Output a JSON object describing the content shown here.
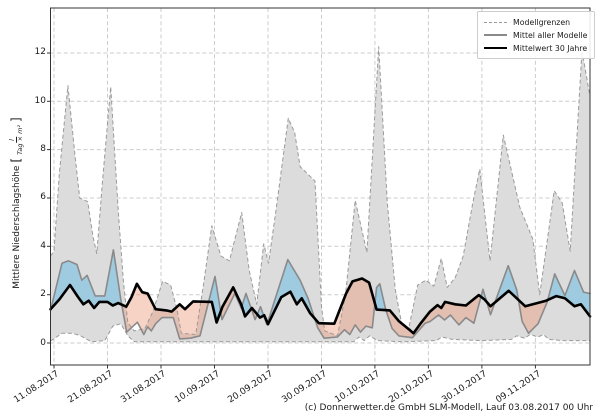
{
  "figure": {
    "caption": "(c) Donnerwetter.de GmbH SLM-Modell, Lauf 03.08.2017 00 Uhr"
  },
  "chart_data": {
    "type": "line",
    "title": "",
    "xlabel": "",
    "ylabel": "Mittlere Niederschlagshöhe [l/(Tag × m²)]",
    "ylabel_parts": {
      "text": "Mittlere Niederschlagshöhe",
      "unit_numerator": "l",
      "unit_denominator": "Tag × m²"
    },
    "x_start_date": "11.08.2017",
    "x_unit": "days since 11.08.2017",
    "x_tick_labels": [
      "11.08.2017",
      "21.08.2017",
      "31.08.2017",
      "10.09.2017",
      "20.09.2017",
      "30.09.2017",
      "10.10.2017",
      "20.10.2017",
      "30.10.2017",
      "09.11.2017"
    ],
    "x_ticks_days": [
      0,
      10,
      20,
      30,
      40,
      50,
      60,
      70,
      80,
      90
    ],
    "y_ticks": [
      0,
      2,
      4,
      6,
      8,
      10,
      12
    ],
    "xlim_days": [
      -0.65,
      100.2
    ],
    "ylim": [
      -0.91,
      13.86
    ],
    "grid": true,
    "legend": {
      "position": "top-right",
      "entries": [
        {
          "label": "Modellgrenzen",
          "style": "dashed-gray"
        },
        {
          "label": "Mittel aller Modelle",
          "style": "solid-gray"
        },
        {
          "label": "Mittelwert 30 Jahre",
          "style": "solid-black-bold"
        }
      ]
    },
    "colors": {
      "band": "#dcdcdc",
      "bound": "#9a9a9a",
      "model_mean": "#8a8a8a",
      "mean30": "#000000",
      "above_fill": "rgba(110,190,230,0.55)",
      "below_fill": "rgba(235,150,120,0.42)",
      "grid": "#cccccc",
      "spine": "#333333"
    },
    "series": [
      {
        "key": "model_max",
        "name": "Modellgrenzen (oberes Limit)",
        "style": "dashed-gray",
        "points": [
          [
            -0.65,
            3.6
          ],
          [
            0,
            3.8
          ],
          [
            1,
            7.0
          ],
          [
            2.6,
            10.65
          ],
          [
            4,
            7.6
          ],
          [
            4.8,
            6.0
          ],
          [
            6.3,
            5.85
          ],
          [
            7.3,
            4.4
          ],
          [
            8,
            3.7
          ],
          [
            9,
            6.5
          ],
          [
            10.6,
            10.6
          ],
          [
            12,
            5.5
          ],
          [
            13,
            2.5
          ],
          [
            13.8,
            0.85
          ],
          [
            15,
            0.5
          ],
          [
            17,
            0.6
          ],
          [
            18.5,
            1.3
          ],
          [
            20.3,
            2.55
          ],
          [
            21.8,
            2.4
          ],
          [
            23,
            1.4
          ],
          [
            23.8,
            0.4
          ],
          [
            26.5,
            0.35
          ],
          [
            28,
            2.5
          ],
          [
            29.5,
            4.85
          ],
          [
            31.2,
            3.6
          ],
          [
            32.8,
            3.4
          ],
          [
            35.1,
            5.4
          ],
          [
            36.5,
            3.0
          ],
          [
            37.9,
            1.6
          ],
          [
            39.2,
            4.1
          ],
          [
            40.1,
            3.3
          ],
          [
            41.5,
            5.5
          ],
          [
            43.8,
            9.3
          ],
          [
            45,
            8.7
          ],
          [
            46,
            7.3
          ],
          [
            48.8,
            6.7
          ],
          [
            50,
            1.5
          ],
          [
            50.6,
            0.5
          ],
          [
            53,
            0.3
          ],
          [
            54.5,
            2.0
          ],
          [
            56.3,
            5.9
          ],
          [
            58.5,
            3.75
          ],
          [
            60.7,
            12.26
          ],
          [
            62.3,
            5.8
          ],
          [
            63.8,
            2.2
          ],
          [
            65,
            0.8
          ],
          [
            66.3,
            0.6
          ],
          [
            68,
            2.4
          ],
          [
            69.5,
            2.6
          ],
          [
            71,
            2.35
          ],
          [
            72.4,
            3.5
          ],
          [
            73.5,
            2.3
          ],
          [
            75,
            2.7
          ],
          [
            76.5,
            3.6
          ],
          [
            78.3,
            5.8
          ],
          [
            79.6,
            7.2
          ],
          [
            81.5,
            3.4
          ],
          [
            84,
            8.6
          ],
          [
            87.1,
            5.6
          ],
          [
            89.5,
            4.3
          ],
          [
            90.8,
            2.0
          ],
          [
            93.5,
            6.3
          ],
          [
            95,
            5.8
          ],
          [
            96.5,
            3.8
          ],
          [
            98.7,
            12.1
          ],
          [
            100.2,
            10.2
          ]
        ]
      },
      {
        "key": "model_min",
        "name": "Modellgrenzen (unteres Limit)",
        "style": "dashed-gray",
        "points": [
          [
            -0.65,
            0.08
          ],
          [
            1.5,
            0.4
          ],
          [
            3.5,
            0.4
          ],
          [
            5,
            0.3
          ],
          [
            7,
            0.05
          ],
          [
            9.5,
            0.1
          ],
          [
            11,
            0.7
          ],
          [
            12.5,
            0.8
          ],
          [
            13.8,
            0.3
          ],
          [
            15,
            0.05
          ],
          [
            25,
            0.05
          ],
          [
            40,
            0.05
          ],
          [
            56,
            0.05
          ],
          [
            57,
            0.25
          ],
          [
            58,
            0.1
          ],
          [
            59,
            0.3
          ],
          [
            60.5,
            0.1
          ],
          [
            65,
            0.05
          ],
          [
            71.5,
            0.1
          ],
          [
            72.5,
            0.25
          ],
          [
            74.5,
            0.15
          ],
          [
            80,
            0.1
          ],
          [
            85.5,
            0.15
          ],
          [
            86.5,
            0.3
          ],
          [
            88,
            0.2
          ],
          [
            89,
            0.35
          ],
          [
            90.5,
            0.25
          ],
          [
            91.5,
            0.35
          ],
          [
            92.5,
            0.15
          ],
          [
            95,
            0.1
          ],
          [
            100.2,
            0.1
          ]
        ]
      },
      {
        "key": "model_mean",
        "name": "Mittel aller Modelle",
        "style": "solid-gray",
        "points": [
          [
            -0.65,
            1.35
          ],
          [
            1.5,
            3.3
          ],
          [
            2.7,
            3.4
          ],
          [
            4.3,
            3.25
          ],
          [
            5.2,
            2.6
          ],
          [
            6.2,
            2.8
          ],
          [
            7.7,
            1.95
          ],
          [
            9.5,
            1.95
          ],
          [
            11.1,
            3.85
          ],
          [
            12.5,
            1.8
          ],
          [
            13.6,
            0.45
          ],
          [
            15.6,
            0.86
          ],
          [
            16.8,
            0.35
          ],
          [
            17.5,
            0.67
          ],
          [
            18.2,
            0.5
          ],
          [
            19,
            0.8
          ],
          [
            20.2,
            1.05
          ],
          [
            22.3,
            1.05
          ],
          [
            23.5,
            0.17
          ],
          [
            25.5,
            0.2
          ],
          [
            27.3,
            0.3
          ],
          [
            30.1,
            2.75
          ],
          [
            31.4,
            0.97
          ],
          [
            33.8,
            2.05
          ],
          [
            35,
            1.45
          ],
          [
            35.9,
            2.05
          ],
          [
            37.6,
            0.97
          ],
          [
            38.6,
            1.5
          ],
          [
            39.8,
            0.76
          ],
          [
            43.7,
            3.45
          ],
          [
            46,
            2.6
          ],
          [
            47.5,
            1.84
          ],
          [
            49.3,
            0.63
          ],
          [
            50.5,
            0.2
          ],
          [
            53,
            0.25
          ],
          [
            54.3,
            0.55
          ],
          [
            55.3,
            0.35
          ],
          [
            56.3,
            0.75
          ],
          [
            57.3,
            0.45
          ],
          [
            58.3,
            0.7
          ],
          [
            59.5,
            0.63
          ],
          [
            60.3,
            2.3
          ],
          [
            60.9,
            2.45
          ],
          [
            62,
            1.4
          ],
          [
            63.2,
            0.6
          ],
          [
            64.5,
            0.29
          ],
          [
            67,
            0.22
          ],
          [
            69.4,
            0.82
          ],
          [
            70.3,
            0.89
          ],
          [
            71.9,
            1.16
          ],
          [
            73,
            0.95
          ],
          [
            74.1,
            1.16
          ],
          [
            75.7,
            0.75
          ],
          [
            77,
            1.05
          ],
          [
            78.5,
            0.82
          ],
          [
            80.2,
            2.22
          ],
          [
            81.6,
            1.17
          ],
          [
            84.9,
            3.2
          ],
          [
            86.5,
            2.2
          ],
          [
            87.5,
            0.9
          ],
          [
            88.7,
            0.4
          ],
          [
            90.5,
            0.8
          ],
          [
            92.2,
            1.7
          ],
          [
            93.6,
            2.86
          ],
          [
            95.5,
            1.96
          ],
          [
            97.3,
            3.0
          ],
          [
            99,
            2.1
          ],
          [
            100.2,
            2.05
          ]
        ]
      },
      {
        "key": "mean30",
        "name": "Mittelwert 30 Jahre",
        "style": "solid-black-bold",
        "points": [
          [
            -0.65,
            1.4
          ],
          [
            1,
            1.8
          ],
          [
            3,
            2.4
          ],
          [
            4.5,
            1.9
          ],
          [
            5.5,
            1.6
          ],
          [
            6.5,
            1.75
          ],
          [
            7.5,
            1.45
          ],
          [
            8.5,
            1.7
          ],
          [
            10,
            1.7
          ],
          [
            11,
            1.55
          ],
          [
            12,
            1.65
          ],
          [
            13.5,
            1.5
          ],
          [
            14.5,
            1.9
          ],
          [
            15.5,
            2.45
          ],
          [
            16.5,
            2.1
          ],
          [
            17.5,
            2.05
          ],
          [
            19,
            1.4
          ],
          [
            21,
            1.35
          ],
          [
            22,
            1.3
          ],
          [
            23.5,
            1.6
          ],
          [
            24.5,
            1.4
          ],
          [
            26,
            1.72
          ],
          [
            29.5,
            1.7
          ],
          [
            30.4,
            0.85
          ],
          [
            31.5,
            1.5
          ],
          [
            33.5,
            2.3
          ],
          [
            35,
            1.6
          ],
          [
            35.7,
            1.1
          ],
          [
            37,
            1.45
          ],
          [
            38.5,
            1.05
          ],
          [
            39.3,
            1.15
          ],
          [
            40,
            0.78
          ],
          [
            42.5,
            1.9
          ],
          [
            44.2,
            2.12
          ],
          [
            45.4,
            1.6
          ],
          [
            46.3,
            1.85
          ],
          [
            47.9,
            1.23
          ],
          [
            48.4,
            1.1
          ],
          [
            49.5,
            0.82
          ],
          [
            52.4,
            0.8
          ],
          [
            54.6,
            2.05
          ],
          [
            55.8,
            2.55
          ],
          [
            57.6,
            2.67
          ],
          [
            58.9,
            2.5
          ],
          [
            60.3,
            1.38
          ],
          [
            62.8,
            1.35
          ],
          [
            64.5,
            0.9
          ],
          [
            66.5,
            0.54
          ],
          [
            67.2,
            0.4
          ],
          [
            68.5,
            0.8
          ],
          [
            70.3,
            1.3
          ],
          [
            71.7,
            1.57
          ],
          [
            72.4,
            1.45
          ],
          [
            73.1,
            1.7
          ],
          [
            75,
            1.6
          ],
          [
            77,
            1.55
          ],
          [
            79.4,
            1.98
          ],
          [
            80.5,
            1.8
          ],
          [
            81.6,
            1.52
          ],
          [
            85,
            2.16
          ],
          [
            88.1,
            1.52
          ],
          [
            89.5,
            1.6
          ],
          [
            90.5,
            1.66
          ],
          [
            92,
            1.75
          ],
          [
            93.9,
            1.94
          ],
          [
            95.5,
            1.85
          ],
          [
            97.3,
            1.52
          ],
          [
            98.5,
            1.6
          ],
          [
            100.2,
            1.1
          ]
        ]
      }
    ]
  }
}
